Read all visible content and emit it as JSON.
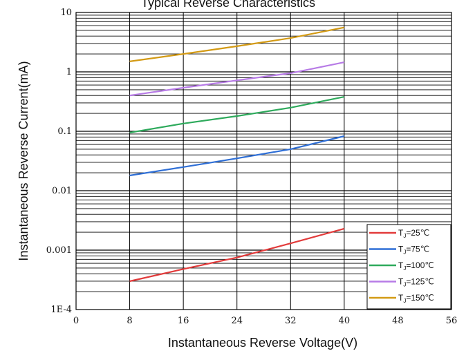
{
  "chart_data": {
    "type": "line",
    "title": "Typical Reverse Characteristics",
    "xlabel": "Instantaneous Reverse Voltage(V)",
    "ylabel": "Instantaneous Reverse Current(mA)",
    "xlim": [
      0,
      56
    ],
    "ylim": [
      0.0001,
      10
    ],
    "y_scale": "log",
    "x_ticks": [
      "0",
      "8",
      "16",
      "24",
      "32",
      "40",
      "48",
      "56"
    ],
    "y_ticks": [
      "1E-4",
      "0.001",
      "0.01",
      "0.1",
      "1",
      "10"
    ],
    "grid": true,
    "legend_position": "bottom-right",
    "x": [
      8,
      16,
      24,
      32,
      40
    ],
    "series": [
      {
        "name": "Tj=25°C",
        "label_main": "T",
        "label_sub": "J",
        "label_rest": "=25℃",
        "color": "#e23b3b",
        "values": [
          0.0003,
          0.00048,
          0.00075,
          0.0013,
          0.0023
        ]
      },
      {
        "name": "Tj=75°C",
        "label_main": "T",
        "label_sub": "J",
        "label_rest": "=75℃",
        "color": "#2f6fd6",
        "values": [
          0.018,
          0.025,
          0.035,
          0.05,
          0.083
        ]
      },
      {
        "name": "Tj=100°C",
        "label_main": "T",
        "label_sub": "J",
        "label_rest": "=100℃",
        "color": "#2eaa5c",
        "values": [
          0.095,
          0.135,
          0.18,
          0.25,
          0.38
        ]
      },
      {
        "name": "Tj=125°C",
        "label_main": "T",
        "label_sub": "J",
        "label_rest": "=125℃",
        "color": "#b77be6",
        "values": [
          0.4,
          0.54,
          0.72,
          0.95,
          1.45
        ]
      },
      {
        "name": "Tj=150°C",
        "label_main": "T",
        "label_sub": "J",
        "label_rest": "=150℃",
        "color": "#d39a14",
        "values": [
          1.5,
          2.0,
          2.7,
          3.7,
          5.6
        ]
      }
    ]
  }
}
